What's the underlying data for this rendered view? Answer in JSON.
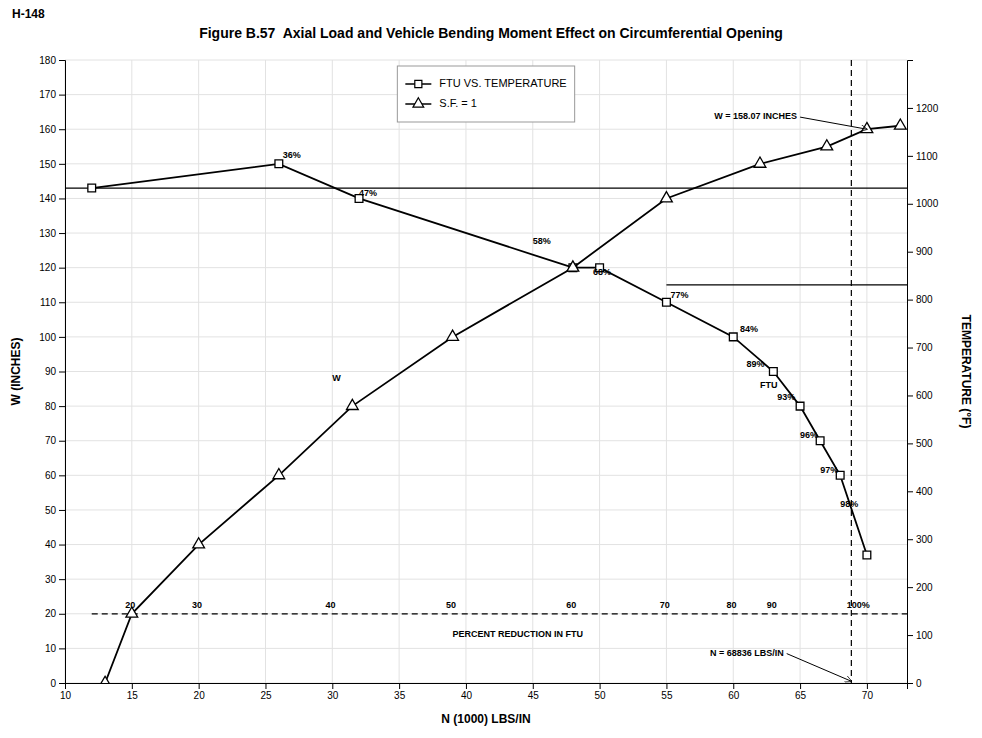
{
  "chart_data": {
    "type": "line",
    "title": "Figure B.57  Axial Load and Vehicle Bending Moment Effect on Circumferential Opening",
    "subtitle": "H-148",
    "x_label": "N (1000) LBS/IN",
    "y_label": "W (INCHES)",
    "y2_label": "TEMPERATURE (°F)",
    "xlim": [
      10,
      73
    ],
    "xticks": [
      10,
      15,
      20,
      25,
      30,
      35,
      40,
      45,
      50,
      55,
      60,
      65,
      70
    ],
    "ylim": [
      0,
      180
    ],
    "yticks": [
      0,
      10,
      20,
      30,
      40,
      50,
      60,
      70,
      80,
      90,
      100,
      110,
      120,
      130,
      140,
      150,
      160,
      170,
      180
    ],
    "y2lim": [
      0,
      1300
    ],
    "y2ticks": [
      0,
      100,
      200,
      300,
      400,
      500,
      600,
      700,
      800,
      900,
      1000,
      1100,
      1200
    ],
    "grid": true,
    "legend": "upper center",
    "series": [
      {
        "name": "FTU VS. TEMPERATURE",
        "color": "#000000",
        "marker": "square",
        "line_style": "solid",
        "x": [
          12.0,
          26.0,
          32.0,
          48.0,
          50.0,
          55.0,
          60.0,
          63.0,
          65.0,
          66.5,
          68.0,
          70.0
        ],
        "values": [
          143.0,
          150.0,
          140.0,
          120.0,
          120.0,
          110.0,
          100.0,
          90.0,
          80.0,
          70.0,
          60.0,
          37.0
        ]
      },
      {
        "name": "S.F. = 1",
        "color": "#000000",
        "marker": "triangle",
        "line_style": "solid",
        "x": [
          13.0,
          15.0,
          20.0,
          26.0,
          31.5,
          39.0,
          48.0,
          55.0,
          62.0,
          67.0,
          70.0,
          72.5
        ],
        "values": [
          0.0,
          20.0,
          40.0,
          60.0,
          80.0,
          100.0,
          120.0,
          140.0,
          150.0,
          155.0,
          160.0,
          161.0
        ]
      }
    ],
    "reference_lines": [
      {
        "y": 143.0,
        "x_start": 10.0,
        "x_end": 73.0,
        "line_style": "solid"
      },
      {
        "y": 115.0,
        "x_start": 55.0,
        "x_end": 73.0,
        "line_style": "solid"
      },
      {
        "y": 20.0,
        "x_start": 12.0,
        "x_end": 73.0,
        "line_style": "dashed"
      },
      {
        "x": 68.836,
        "line_style": "dashed"
      }
    ],
    "annotations": [
      {
        "text": "W",
        "x": 30.0,
        "y": 88.0
      },
      {
        "text": "W = 158.07 INCHES",
        "x": 65.0,
        "y": 163.5,
        "arrow_x": 70.0,
        "arrow_y": 160.0
      },
      {
        "text": "N = 68836 LBS/IN",
        "x": 64.0,
        "y": 8.5,
        "arrow_x": 68.836,
        "arrow_y": 0.5
      },
      {
        "text": "20",
        "x": 14.5,
        "y": 22.5
      },
      {
        "text": "30",
        "x": 19.5,
        "y": 22.5
      },
      {
        "text": "40",
        "x": 29.5,
        "y": 22.5
      },
      {
        "text": "50",
        "x": 38.5,
        "y": 22.5
      },
      {
        "text": "60",
        "x": 47.5,
        "y": 22.5
      },
      {
        "text": "70",
        "x": 54.5,
        "y": 22.5
      },
      {
        "text": "80",
        "x": 59.5,
        "y": 22.5
      },
      {
        "text": "90",
        "x": 62.5,
        "y": 22.5
      },
      {
        "text": "100%",
        "x": 68.5,
        "y": 22.5
      },
      {
        "text": "PERCENT REDUCTION IN FTU",
        "x": 39.0,
        "y": 14.0
      },
      {
        "text": "36%",
        "x": 26.3,
        "y": 152.5
      },
      {
        "text": "47%",
        "x": 32.0,
        "y": 141.5
      },
      {
        "text": "58%",
        "x": 45.0,
        "y": 127.5
      },
      {
        "text": "68%",
        "x": 49.5,
        "y": 118.5
      },
      {
        "text": "77%",
        "x": 55.3,
        "y": 112.0
      },
      {
        "text": "84%",
        "x": 60.5,
        "y": 102.0
      },
      {
        "text": "89%",
        "x": 61.0,
        "y": 92.0
      },
      {
        "text": "93%",
        "x": 63.3,
        "y": 82.5
      },
      {
        "text": "96%",
        "x": 65.0,
        "y": 71.5
      },
      {
        "text": "97%",
        "x": 66.5,
        "y": 61.5
      },
      {
        "text": "98%",
        "x": 68.0,
        "y": 51.5
      },
      {
        "text": "FTU",
        "x": 62.0,
        "y": 86.0
      }
    ]
  }
}
